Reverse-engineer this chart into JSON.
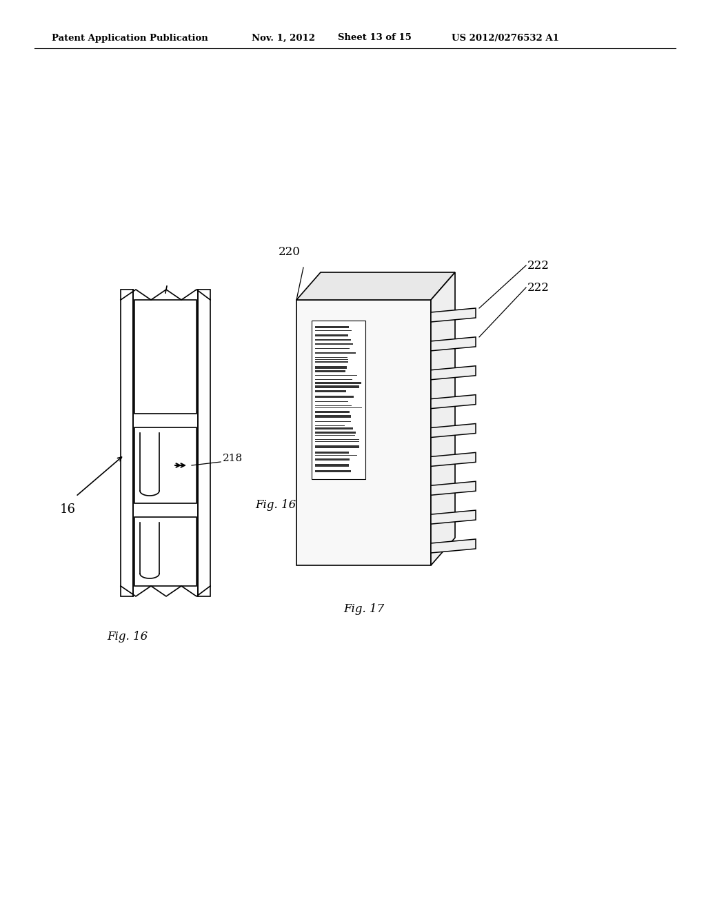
{
  "background_color": "#ffffff",
  "header_text": "Patent Application Publication",
  "header_date": "Nov. 1, 2012",
  "header_sheet": "Sheet 13 of 15",
  "header_patent": "US 2012/0276532 A1",
  "fig16_label": "Fig. 16",
  "fig17_label": "Fig. 17",
  "label_16": "16",
  "label_218": "218",
  "label_220": "220",
  "label_222a": "222",
  "label_222b": "222",
  "line_color": "#000000",
  "line_width": 1.2
}
